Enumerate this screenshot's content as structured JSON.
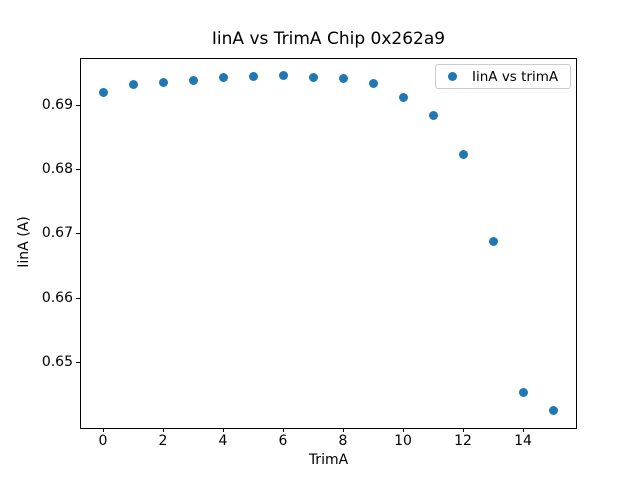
{
  "chart_data": {
    "type": "scatter",
    "title": "IinA vs TrimA Chip 0x262a9",
    "xlabel": "TrimA",
    "ylabel": "IinA (A)",
    "legend": {
      "label": "IinA vs trimA",
      "position": "upper right"
    },
    "marker_color": "#1f77b4",
    "x": [
      0,
      1,
      2,
      3,
      4,
      5,
      6,
      7,
      8,
      9,
      10,
      11,
      12,
      13,
      14,
      15
    ],
    "y": [
      0.6921,
      0.6932,
      0.6936,
      0.6939,
      0.6943,
      0.6945,
      0.6947,
      0.6944,
      0.6942,
      0.6934,
      0.6913,
      0.6884,
      0.6823,
      0.6688,
      0.6453,
      0.6424
    ],
    "xlim": [
      -0.75,
      15.75
    ],
    "ylim": [
      0.6399,
      0.6974
    ],
    "xticks": [
      0,
      2,
      4,
      6,
      8,
      10,
      12,
      14
    ],
    "xtick_labels": [
      "0",
      "2",
      "4",
      "6",
      "8",
      "10",
      "12",
      "14"
    ],
    "yticks": [
      0.65,
      0.66,
      0.67,
      0.68,
      0.69
    ],
    "ytick_labels": [
      "0.65",
      "0.66",
      "0.67",
      "0.68",
      "0.69"
    ],
    "grid": false,
    "background": "#ffffff"
  }
}
